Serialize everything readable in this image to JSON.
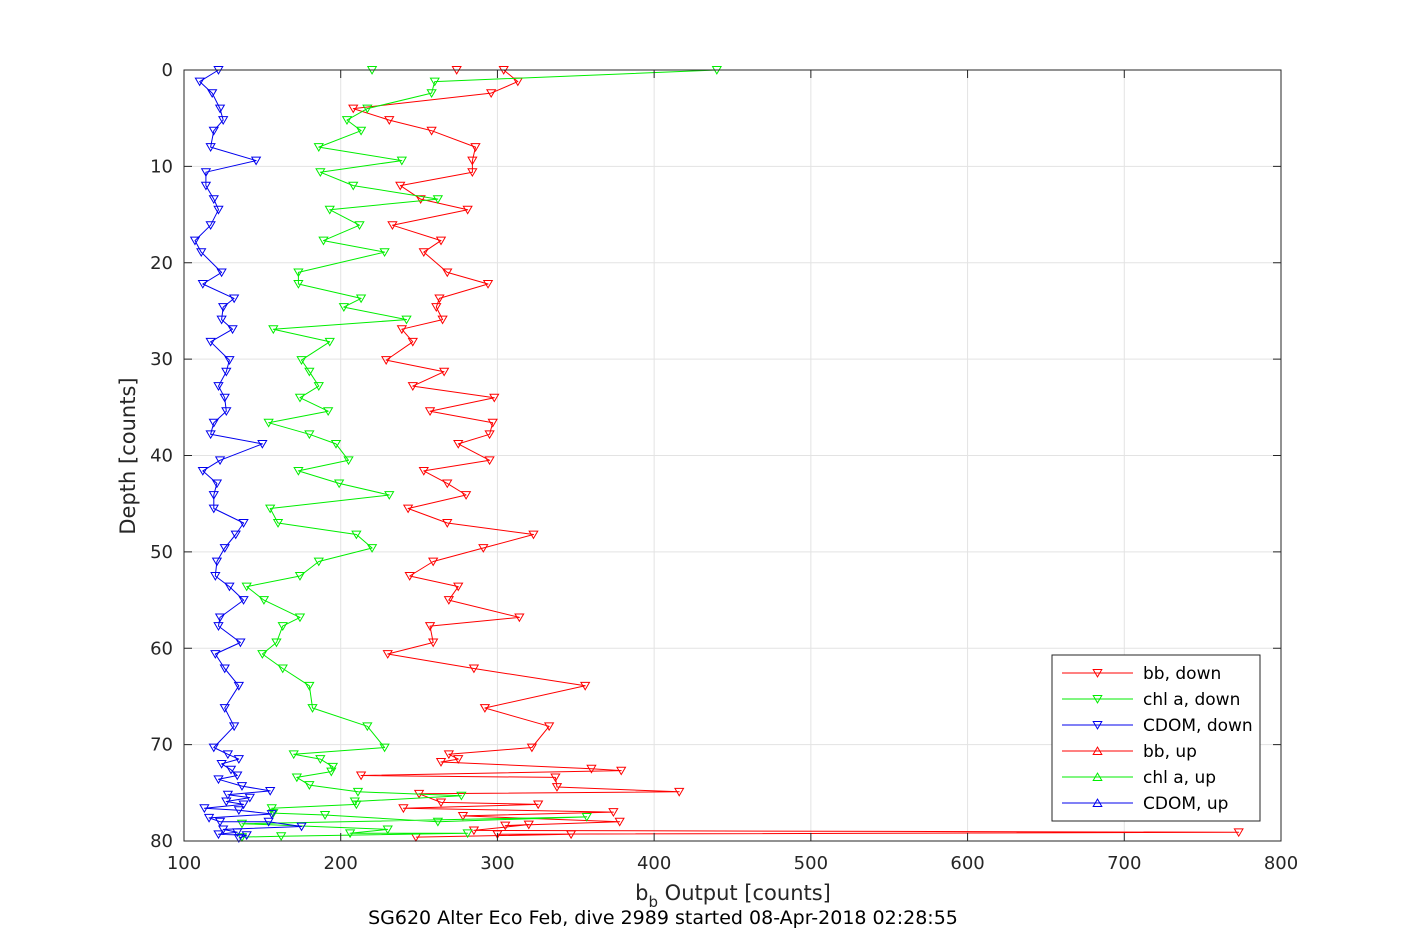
{
  "chart_data": {
    "type": "line",
    "title": "",
    "xlabel_base": "b",
    "xlabel_sub": "b",
    "xlabel_rest": " Output [counts]",
    "ylabel": "Depth [counts]",
    "caption": "SG620 Alter Eco Feb, dive 2989 started 08-Apr-2018 02:28:55",
    "xlim": [
      100,
      800
    ],
    "ylim": [
      0,
      80
    ],
    "y_reversed": true,
    "grid": true,
    "legend_position": "bottom-right",
    "x_ticks": [
      100,
      200,
      300,
      400,
      500,
      600,
      700,
      800
    ],
    "y_ticks": [
      0,
      10,
      20,
      30,
      40,
      50,
      60,
      70,
      80
    ],
    "series": [
      {
        "name": "bb, down",
        "color": "#ff0000",
        "marker": "down",
        "points": [
          [
            274,
            0
          ],
          [
            304,
            0
          ],
          [
            313,
            1.2
          ],
          [
            296,
            2.4
          ],
          [
            208,
            4
          ],
          [
            231,
            5.2
          ],
          [
            258,
            6.3
          ],
          [
            286,
            8
          ],
          [
            284,
            9.4
          ],
          [
            284,
            10.6
          ],
          [
            238,
            12
          ],
          [
            251,
            13.4
          ],
          [
            281,
            14.5
          ],
          [
            233,
            16.1
          ],
          [
            264,
            17.7
          ],
          [
            253,
            18.9
          ],
          [
            268,
            21
          ],
          [
            294,
            22.2
          ],
          [
            263,
            23.7
          ],
          [
            261,
            24.6
          ],
          [
            265,
            25.9
          ],
          [
            239,
            26.9
          ],
          [
            246,
            28.2
          ],
          [
            229,
            30.1
          ],
          [
            266,
            31.3
          ],
          [
            246,
            32.8
          ],
          [
            298,
            34
          ],
          [
            257,
            35.4
          ],
          [
            297,
            36.6
          ],
          [
            295,
            37.8
          ],
          [
            275,
            38.8
          ],
          [
            295,
            40.5
          ],
          [
            253,
            41.6
          ],
          [
            268,
            42.9
          ],
          [
            280,
            44.1
          ],
          [
            243,
            45.5
          ],
          [
            268,
            47
          ],
          [
            323,
            48.2
          ],
          [
            291,
            49.6
          ],
          [
            259,
            51
          ],
          [
            244,
            52.5
          ],
          [
            275,
            53.6
          ],
          [
            269,
            55
          ],
          [
            314,
            56.8
          ],
          [
            257,
            57.7
          ],
          [
            259,
            59.4
          ],
          [
            230,
            60.6
          ],
          [
            285,
            62.1
          ],
          [
            356,
            63.9
          ],
          [
            292,
            66.2
          ],
          [
            333,
            68.1
          ],
          [
            322,
            70.3
          ],
          [
            269,
            71
          ],
          [
            275,
            71.5
          ],
          [
            264,
            71.8
          ],
          [
            360,
            72.5
          ],
          [
            379,
            72.7
          ],
          [
            213,
            73.2
          ],
          [
            337,
            73.4
          ],
          [
            338,
            74.4
          ],
          [
            416,
            74.9
          ],
          [
            250,
            75.1
          ],
          [
            264,
            76
          ],
          [
            326,
            76.2
          ],
          [
            240,
            76.6
          ],
          [
            374,
            77
          ],
          [
            278,
            77.4
          ],
          [
            378,
            78
          ],
          [
            305,
            78.4
          ],
          [
            320,
            78.3
          ],
          [
            285,
            78.9
          ],
          [
            773,
            79.1
          ],
          [
            300,
            79.3
          ],
          [
            347,
            79.3
          ],
          [
            248,
            79.6
          ]
        ]
      },
      {
        "name": "chl a, down",
        "color": "#00ee00",
        "marker": "down",
        "points": [
          [
            220,
            0
          ],
          [
            440,
            0
          ],
          [
            260,
            1.2
          ],
          [
            258,
            2.4
          ],
          [
            217,
            4
          ],
          [
            204,
            5.2
          ],
          [
            213,
            6.3
          ],
          [
            186,
            8
          ],
          [
            239,
            9.4
          ],
          [
            187,
            10.6
          ],
          [
            208,
            12
          ],
          [
            262,
            13.4
          ],
          [
            193,
            14.5
          ],
          [
            212,
            16.1
          ],
          [
            189,
            17.7
          ],
          [
            228,
            18.9
          ],
          [
            173,
            21
          ],
          [
            173,
            22.2
          ],
          [
            213,
            23.7
          ],
          [
            202,
            24.6
          ],
          [
            242,
            25.9
          ],
          [
            157,
            26.9
          ],
          [
            193,
            28.2
          ],
          [
            175,
            30.1
          ],
          [
            180,
            31.3
          ],
          [
            186,
            32.8
          ],
          [
            174,
            34
          ],
          [
            192,
            35.4
          ],
          [
            154,
            36.6
          ],
          [
            180,
            37.8
          ],
          [
            197,
            38.8
          ],
          [
            205,
            40.5
          ],
          [
            173,
            41.6
          ],
          [
            199,
            42.9
          ],
          [
            231,
            44.1
          ],
          [
            155,
            45.5
          ],
          [
            160,
            47
          ],
          [
            210,
            48.2
          ],
          [
            220,
            49.6
          ],
          [
            186,
            51
          ],
          [
            174,
            52.5
          ],
          [
            140,
            53.6
          ],
          [
            151,
            55
          ],
          [
            174,
            56.8
          ],
          [
            163,
            57.7
          ],
          [
            159,
            59.4
          ],
          [
            150,
            60.6
          ],
          [
            163,
            62.1
          ],
          [
            180,
            63.9
          ],
          [
            182,
            66.2
          ],
          [
            217,
            68.1
          ],
          [
            228,
            70.3
          ],
          [
            170,
            71
          ],
          [
            187,
            71.5
          ],
          [
            195,
            72.3
          ],
          [
            194,
            72.8
          ],
          [
            172,
            73.4
          ],
          [
            180,
            74.2
          ],
          [
            211,
            74.9
          ],
          [
            277,
            75.3
          ],
          [
            209,
            75.9
          ],
          [
            210,
            76.2
          ],
          [
            156,
            76.6
          ],
          [
            157,
            77.1
          ],
          [
            190,
            77.3
          ],
          [
            262,
            78
          ],
          [
            357,
            77.5
          ],
          [
            137,
            78.2
          ],
          [
            230,
            78.8
          ],
          [
            206,
            79.2
          ],
          [
            281,
            79.2
          ],
          [
            162,
            79.5
          ],
          [
            137,
            79.6
          ]
        ]
      },
      {
        "name": "CDOM, down",
        "color": "#0000ee",
        "marker": "down",
        "points": [
          [
            122,
            0
          ],
          [
            110,
            1.2
          ],
          [
            118,
            2.4
          ],
          [
            123,
            4
          ],
          [
            125,
            5.2
          ],
          [
            119,
            6.3
          ],
          [
            117,
            8
          ],
          [
            146,
            9.4
          ],
          [
            114,
            10.6
          ],
          [
            114,
            12
          ],
          [
            119,
            13.4
          ],
          [
            122,
            14.5
          ],
          [
            117,
            16.1
          ],
          [
            107,
            17.7
          ],
          [
            111,
            18.9
          ],
          [
            124,
            21
          ],
          [
            112,
            22.2
          ],
          [
            132,
            23.7
          ],
          [
            125,
            24.6
          ],
          [
            124,
            25.9
          ],
          [
            131,
            26.9
          ],
          [
            117,
            28.2
          ],
          [
            129,
            30.1
          ],
          [
            127,
            31.3
          ],
          [
            122,
            32.8
          ],
          [
            126,
            34
          ],
          [
            127,
            35.4
          ],
          [
            119,
            36.6
          ],
          [
            117,
            37.8
          ],
          [
            150,
            38.8
          ],
          [
            123,
            40.5
          ],
          [
            112,
            41.6
          ],
          [
            121,
            42.9
          ],
          [
            119,
            44.1
          ],
          [
            119,
            45.5
          ],
          [
            138,
            47
          ],
          [
            133,
            48.2
          ],
          [
            126,
            49.6
          ],
          [
            121,
            51
          ],
          [
            120,
            52.5
          ],
          [
            129,
            53.6
          ],
          [
            138,
            55
          ],
          [
            123,
            56.8
          ],
          [
            122,
            57.7
          ],
          [
            136,
            59.4
          ],
          [
            120,
            60.6
          ],
          [
            126,
            62.1
          ],
          [
            135,
            63.9
          ],
          [
            126,
            66.2
          ],
          [
            132,
            68.1
          ],
          [
            119,
            70.3
          ],
          [
            128,
            71
          ],
          [
            135,
            71.5
          ],
          [
            124,
            72
          ],
          [
            130,
            72.6
          ],
          [
            134,
            73.2
          ],
          [
            122,
            73.6
          ],
          [
            137,
            74.3
          ],
          [
            155,
            74.8
          ],
          [
            128,
            75.2
          ],
          [
            142,
            75.5
          ],
          [
            127,
            75.9
          ],
          [
            138,
            76.2
          ],
          [
            113,
            76.6
          ],
          [
            135,
            76.8
          ],
          [
            156,
            77.2
          ],
          [
            116,
            77.6
          ],
          [
            123,
            78
          ],
          [
            154,
            78
          ],
          [
            175,
            78.5
          ],
          [
            125,
            78.8
          ],
          [
            134,
            79.1
          ],
          [
            122,
            79.3
          ],
          [
            140,
            79.4
          ],
          [
            135,
            79.7
          ]
        ]
      },
      {
        "name": "bb, up",
        "color": "#ff0000",
        "marker": "up"
      },
      {
        "name": "chl a, up",
        "color": "#00ee00",
        "marker": "up"
      },
      {
        "name": "CDOM, up",
        "color": "#0000ee",
        "marker": "up"
      }
    ]
  }
}
